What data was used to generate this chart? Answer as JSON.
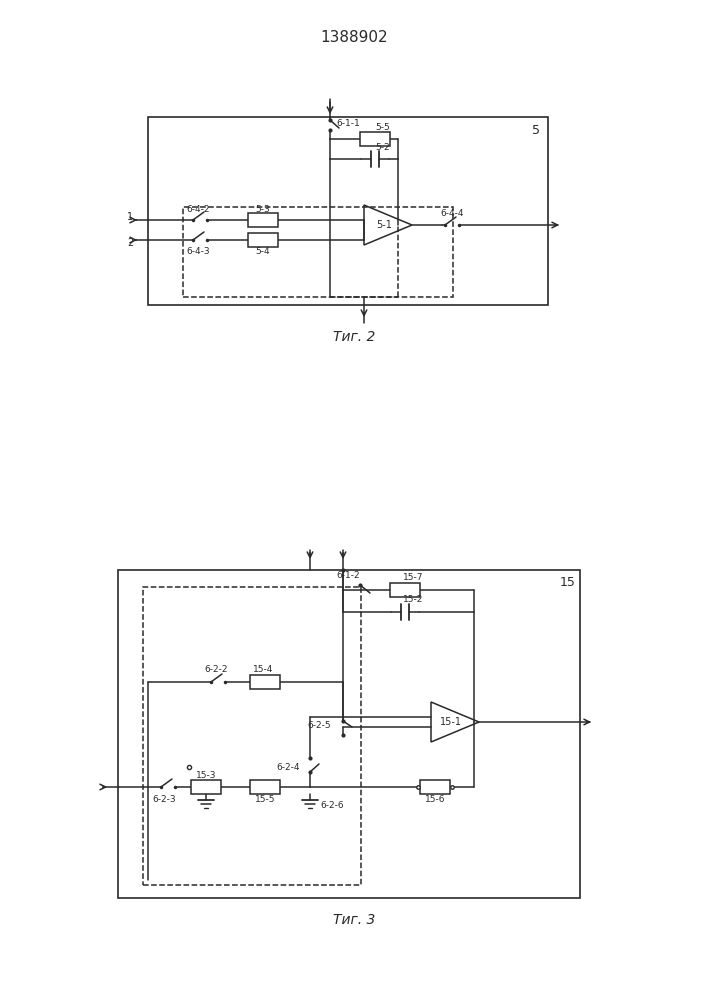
{
  "title": "1388902",
  "fig2_caption": "Τиг. 2",
  "fig3_caption": "Τиг. 3",
  "line_color": "#2a2a2a",
  "font_size_title": 11,
  "font_size_labels": 7,
  "font_size_caption": 10
}
